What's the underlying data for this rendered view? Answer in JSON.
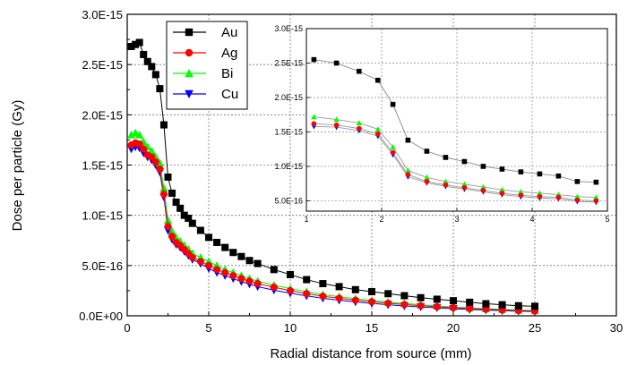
{
  "chart_data": [
    {
      "type": "scatter",
      "xlabel": "Radial distance from source (mm)",
      "ylabel": "Dose per particle (Gy)",
      "xlim": [
        0,
        30
      ],
      "ylim": [
        0,
        3e-15
      ],
      "x_ticks": [
        "0",
        "5",
        "10",
        "15",
        "20",
        "25",
        "30"
      ],
      "y_ticks": [
        "0.0E+00",
        "5.0E-16",
        "1.0E-15",
        "1.5E-15",
        "2.0E-15",
        "2.5E-15",
        "3.0E-15"
      ],
      "grid": true,
      "legend_position": "top-left",
      "series": [
        {
          "name": "Au",
          "color": "#000000",
          "marker": "square",
          "x": [
            0.25,
            0.5,
            0.75,
            1.0,
            1.25,
            1.5,
            1.75,
            2.0,
            2.25,
            2.5,
            2.75,
            3.0,
            3.25,
            3.5,
            3.75,
            4.0,
            4.5,
            5.0,
            5.5,
            6.0,
            6.5,
            7.0,
            7.5,
            8.0,
            9.0,
            10.0,
            11.0,
            12.0,
            13.0,
            14.0,
            15.0,
            16.0,
            17.0,
            18.0,
            19.0,
            20.0,
            21.0,
            22.0,
            23.0,
            24.0,
            25.0
          ],
          "y": [
            2.68e-15,
            2.7e-15,
            2.72e-15,
            2.6e-15,
            2.53e-15,
            2.48e-15,
            2.4e-15,
            2.26e-15,
            1.9e-15,
            1.38e-15,
            1.22e-15,
            1.13e-15,
            1.07e-15,
            1e-15,
            9.7e-16,
            9.2e-16,
            8.5e-16,
            7.8e-16,
            7.3e-16,
            6.8e-16,
            6.3e-16,
            5.9e-16,
            5.5e-16,
            5.2e-16,
            4.6e-16,
            4.1e-16,
            3.6e-16,
            3.2e-16,
            2.9e-16,
            2.6e-16,
            2.4e-16,
            2.2e-16,
            2e-16,
            1.8e-16,
            1.65e-16,
            1.5e-16,
            1.35e-16,
            1.2e-16,
            1.1e-16,
            1e-16,
            9.5e-17
          ]
        },
        {
          "name": "Ag",
          "color": "#ff0000",
          "marker": "circle",
          "x": [
            0.25,
            0.5,
            0.75,
            1.0,
            1.25,
            1.5,
            1.75,
            2.0,
            2.25,
            2.5,
            2.75,
            3.0,
            3.25,
            3.5,
            3.75,
            4.0,
            4.5,
            5.0,
            5.5,
            6.0,
            6.5,
            7.0,
            7.5,
            8.0,
            9.0,
            10.0,
            11.0,
            12.0,
            13.0,
            14.0,
            15.0,
            16.0,
            17.0,
            18.0,
            19.0,
            20.0,
            21.0,
            22.0,
            23.0,
            24.0,
            25.0
          ],
          "y": [
            1.7e-15,
            1.72e-15,
            1.71e-15,
            1.66e-15,
            1.6e-15,
            1.58e-15,
            1.53e-15,
            1.46e-15,
            1.21e-15,
            8.9e-16,
            7.9e-16,
            7.3e-16,
            7e-16,
            6.6e-16,
            6.2e-16,
            5.8e-16,
            5.4e-16,
            5e-16,
            4.6e-16,
            4.3e-16,
            4e-16,
            3.7e-16,
            3.45e-16,
            3.2e-16,
            2.85e-16,
            2.5e-16,
            2.2e-16,
            1.95e-16,
            1.75e-16,
            1.55e-16,
            1.4e-16,
            1.25e-16,
            1.12e-16,
            1e-16,
            9e-17,
            8e-17,
            7.2e-17,
            6.5e-17,
            5.8e-17,
            5.2e-17,
            4.7e-17
          ]
        },
        {
          "name": "Bi",
          "color": "#00ff00",
          "marker": "triangle-up",
          "x": [
            0.25,
            0.5,
            0.75,
            1.0,
            1.25,
            1.5,
            1.75,
            2.0,
            2.25,
            2.5,
            2.75,
            3.0,
            3.25,
            3.5,
            3.75,
            4.0,
            4.5,
            5.0,
            5.5,
            6.0,
            6.5,
            7.0,
            7.5,
            8.0,
            9.0,
            10.0,
            11.0,
            12.0,
            13.0,
            14.0,
            15.0,
            16.0,
            17.0,
            18.0,
            19.0,
            20.0,
            21.0,
            22.0,
            23.0,
            24.0,
            25.0
          ],
          "y": [
            1.8e-15,
            1.82e-15,
            1.8e-15,
            1.73e-15,
            1.68e-15,
            1.64e-15,
            1.58e-15,
            1.52e-15,
            1.27e-15,
            9.5e-16,
            8.4e-16,
            7.8e-16,
            7.4e-16,
            7e-16,
            6.6e-16,
            6.2e-16,
            5.8e-16,
            5.4e-16,
            5e-16,
            4.6e-16,
            4.3e-16,
            4e-16,
            3.7e-16,
            3.45e-16,
            3.05e-16,
            2.7e-16,
            2.4e-16,
            2.1e-16,
            1.9e-16,
            1.7e-16,
            1.52e-16,
            1.36e-16,
            1.22e-16,
            1.1e-16,
            9.8e-17,
            8.8e-17,
            7.9e-17,
            7.1e-17,
            6.4e-17,
            5.7e-17,
            5.2e-17
          ]
        },
        {
          "name": "Cu",
          "color": "#0000ff",
          "marker": "triangle-down",
          "x": [
            0.25,
            0.5,
            0.75,
            1.0,
            1.25,
            1.5,
            1.75,
            2.0,
            2.25,
            2.5,
            2.75,
            3.0,
            3.25,
            3.5,
            3.75,
            4.0,
            4.5,
            5.0,
            5.5,
            6.0,
            6.5,
            7.0,
            7.5,
            8.0,
            9.0,
            10.0,
            11.0,
            12.0,
            13.0,
            14.0,
            15.0,
            16.0,
            17.0,
            18.0,
            19.0,
            20.0,
            21.0,
            22.0,
            23.0,
            24.0,
            25.0
          ],
          "y": [
            1.66e-15,
            1.68e-15,
            1.67e-15,
            1.62e-15,
            1.58e-15,
            1.55e-15,
            1.5e-15,
            1.43e-15,
            1.18e-15,
            8.5e-16,
            7.6e-16,
            7.1e-16,
            6.8e-16,
            6.4e-16,
            6e-16,
            5.6e-16,
            5.2e-16,
            4.7e-16,
            4.3e-16,
            4e-16,
            3.7e-16,
            3.4e-16,
            3.15e-16,
            2.9e-16,
            2.55e-16,
            2.25e-16,
            1.98e-16,
            1.75e-16,
            1.55e-16,
            1.38e-16,
            1.23e-16,
            1.1e-16,
            9.8e-17,
            8.8e-17,
            7.9e-17,
            7e-17,
            6.3e-17,
            5.7e-17,
            5.1e-17,
            4.6e-17,
            4.2e-17
          ]
        }
      ]
    },
    {
      "type": "line",
      "xlim": [
        1,
        5
      ],
      "ylim": [
        3.5e-16,
        3e-15
      ],
      "x_ticks": [
        "1",
        "2",
        "3",
        "4",
        "5"
      ],
      "y_ticks": [
        "5.0E-16",
        "1.0E-15",
        "1.5E-15",
        "2.0E-15",
        "2.5E-15",
        "3.0E-15"
      ],
      "grid": true,
      "series": [
        {
          "name": "Au",
          "color": "#000000",
          "marker": "square",
          "x": [
            1.1,
            1.4,
            1.7,
            1.95,
            2.15,
            2.35,
            2.6,
            2.85,
            3.1,
            3.35,
            3.6,
            3.85,
            4.1,
            4.35,
            4.6,
            4.85
          ],
          "y": [
            2.55e-15,
            2.5e-15,
            2.38e-15,
            2.25e-15,
            1.9e-15,
            1.38e-15,
            1.22e-15,
            1.13e-15,
            1.07e-15,
            1e-15,
            9.6e-16,
            9.2e-16,
            8.9e-16,
            8.6e-16,
            7.8e-16,
            7.7e-16
          ]
        },
        {
          "name": "Ag",
          "color": "#ff0000",
          "marker": "circle",
          "x": [
            1.1,
            1.4,
            1.7,
            1.95,
            2.15,
            2.35,
            2.6,
            2.85,
            3.1,
            3.35,
            3.6,
            3.85,
            4.1,
            4.35,
            4.6,
            4.85
          ],
          "y": [
            1.62e-15,
            1.6e-15,
            1.55e-15,
            1.47e-15,
            1.2e-15,
            8.8e-16,
            7.8e-16,
            7.3e-16,
            6.9e-16,
            6.5e-16,
            6.1e-16,
            5.8e-16,
            5.6e-16,
            5.5e-16,
            5.1e-16,
            5e-16
          ]
        },
        {
          "name": "Bi",
          "color": "#00ff00",
          "marker": "triangle-up",
          "x": [
            1.1,
            1.4,
            1.7,
            1.95,
            2.15,
            2.35,
            2.6,
            2.85,
            3.1,
            3.35,
            3.6,
            3.85,
            4.1,
            4.35,
            4.6,
            4.85
          ],
          "y": [
            1.72e-15,
            1.68e-15,
            1.63e-15,
            1.54e-15,
            1.28e-15,
            9.4e-16,
            8.4e-16,
            7.8e-16,
            7.4e-16,
            7e-16,
            6.6e-16,
            6.3e-16,
            6.1e-16,
            5.9e-16,
            5.6e-16,
            5.5e-16
          ]
        },
        {
          "name": "Cu",
          "color": "#0000ff",
          "marker": "triangle-down",
          "x": [
            1.1,
            1.4,
            1.7,
            1.95,
            2.15,
            2.35,
            2.6,
            2.85,
            3.1,
            3.35,
            3.6,
            3.85,
            4.1,
            4.35,
            4.6,
            4.85
          ],
          "y": [
            1.58e-15,
            1.57e-15,
            1.52e-15,
            1.44e-15,
            1.17e-15,
            8.5e-16,
            7.6e-16,
            7.1e-16,
            6.7e-16,
            6.3e-16,
            5.9e-16,
            5.6e-16,
            5.4e-16,
            5.3e-16,
            4.9e-16,
            4.8e-16
          ]
        }
      ]
    }
  ]
}
